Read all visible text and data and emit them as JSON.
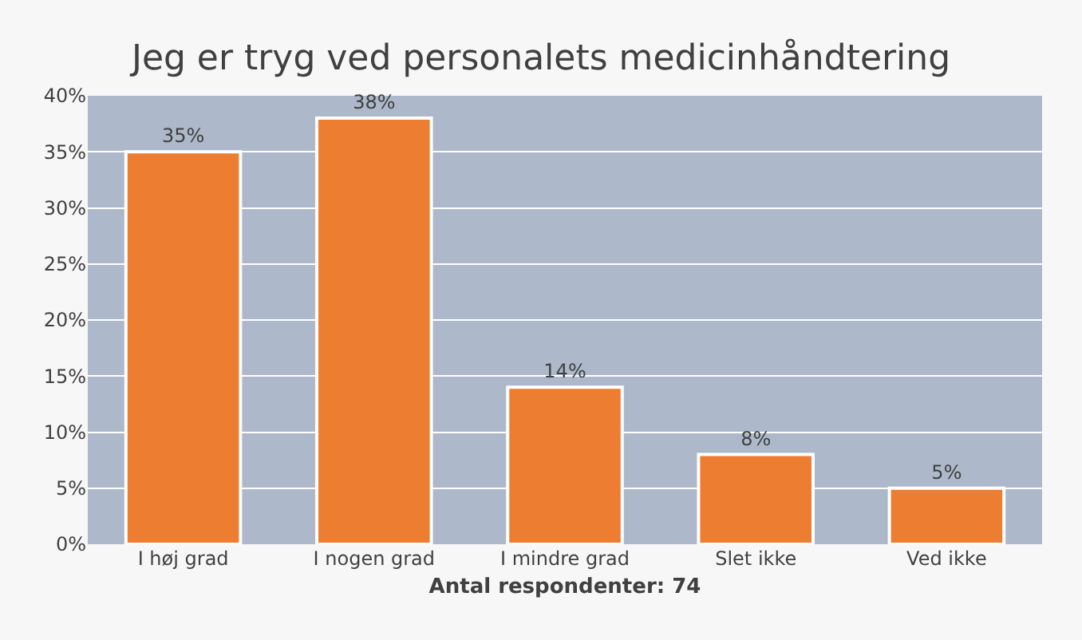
{
  "chart_data": {
    "type": "bar",
    "title": "Jeg er tryg ved personalets medicinhåndtering",
    "categories": [
      "I høj grad",
      "I nogen grad",
      "I mindre grad",
      "Slet ikke",
      "Ved ikke"
    ],
    "values": [
      35,
      38,
      14,
      8,
      5
    ],
    "value_labels": [
      "35%",
      "38%",
      "14%",
      "8%",
      "5%"
    ],
    "color": "#ed7d31",
    "xlabel": "Antal respondenter: 74",
    "ylim": [
      0,
      40
    ],
    "yticks": [
      {
        "value": 0,
        "label": "0%"
      },
      {
        "value": 5,
        "label": "5%"
      },
      {
        "value": 10,
        "label": "10%"
      },
      {
        "value": 15,
        "label": "15%"
      },
      {
        "value": 20,
        "label": "20%"
      },
      {
        "value": 25,
        "label": "25%"
      },
      {
        "value": 30,
        "label": "30%"
      },
      {
        "value": 35,
        "label": "35%"
      },
      {
        "value": 40,
        "label": "40%"
      }
    ],
    "grid": "y"
  }
}
